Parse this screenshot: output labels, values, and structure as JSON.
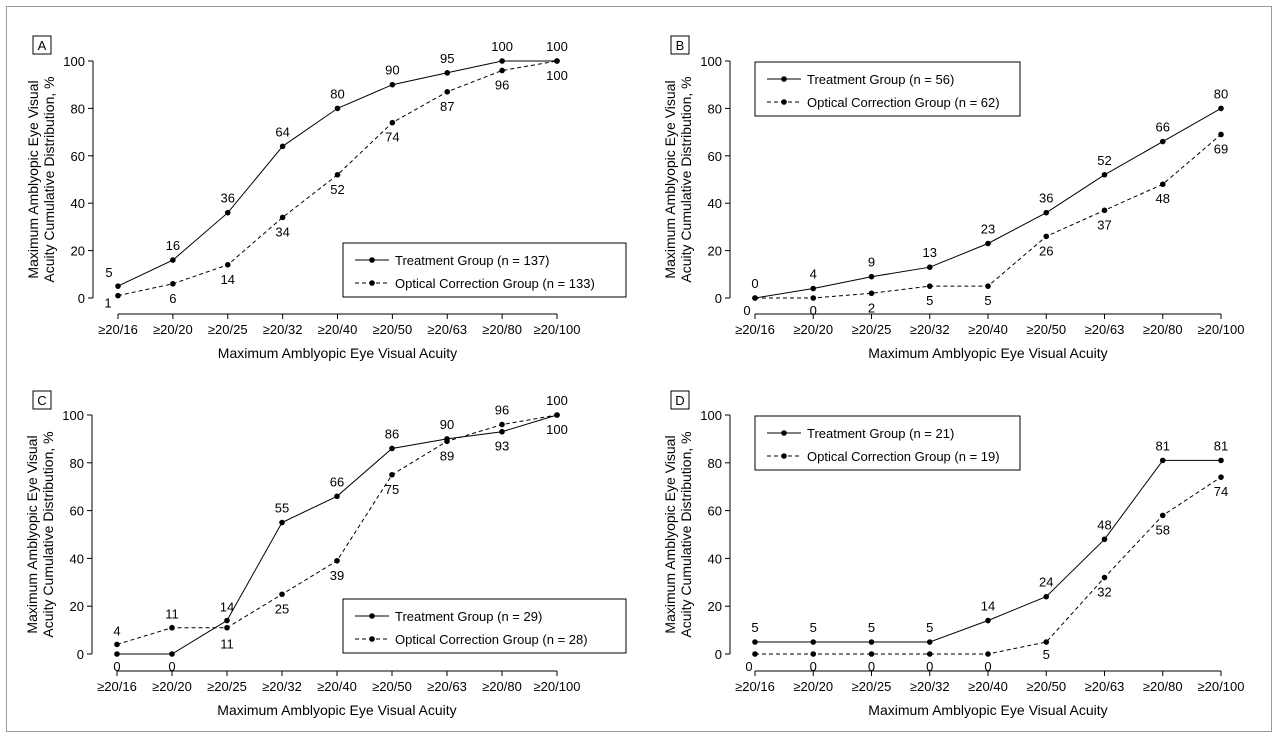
{
  "chart_data": [
    {
      "panel": "A",
      "type": "line",
      "categories": [
        "≥20/16",
        "≥20/20",
        "≥20/25",
        "≥20/32",
        "≥20/40",
        "≥20/50",
        "≥20/63",
        "≥20/80",
        "≥20/100"
      ],
      "xlabel": "Maximum Amblyopic Eye Visual Acuity",
      "ylabel": [
        "Maximum Amblyopic Eye Visual",
        "Acuity Cumulative Distribution, %"
      ],
      "ylim": [
        0,
        100
      ],
      "yticks": [
        0,
        20,
        40,
        60,
        80,
        100
      ],
      "grid": false,
      "legend_position": "bottom-right",
      "series": [
        {
          "name": "Treatment Group (n = 137)",
          "style": "solid",
          "values": [
            5,
            16,
            36,
            64,
            80,
            90,
            95,
            100,
            100
          ]
        },
        {
          "name": "Optical Correction Group (n = 133)",
          "style": "dashed",
          "values": [
            1,
            6,
            14,
            34,
            52,
            74,
            87,
            96,
            100
          ]
        }
      ]
    },
    {
      "panel": "B",
      "type": "line",
      "categories": [
        "≥20/16",
        "≥20/20",
        "≥20/25",
        "≥20/32",
        "≥20/40",
        "≥20/50",
        "≥20/63",
        "≥20/80",
        "≥20/100"
      ],
      "xlabel": "Maximum Amblyopic Eye Visual Acuity",
      "ylabel": [
        "Maximum Amblyopic Eye Visual",
        "Acuity Cumulative Distribution, %"
      ],
      "ylim": [
        0,
        100
      ],
      "yticks": [
        0,
        20,
        40,
        60,
        80,
        100
      ],
      "grid": false,
      "legend_position": "top-left",
      "series": [
        {
          "name": "Treatment Group (n = 56)",
          "style": "solid",
          "values": [
            0,
            4,
            9,
            13,
            23,
            36,
            52,
            66,
            80
          ]
        },
        {
          "name": "Optical Correction Group (n = 62)",
          "style": "dashed",
          "values": [
            0,
            0,
            2,
            5,
            5,
            26,
            37,
            48,
            69
          ]
        }
      ]
    },
    {
      "panel": "C",
      "type": "line",
      "categories": [
        "≥20/16",
        "≥20/20",
        "≥20/25",
        "≥20/32",
        "≥20/40",
        "≥20/50",
        "≥20/63",
        "≥20/80",
        "≥20/100"
      ],
      "xlabel": "Maximum Amblyopic Eye Visual Acuity",
      "ylabel": [
        "Maximum Amblyopic Eye Visual",
        "Acuity Cumulative Distribution, %"
      ],
      "ylim": [
        0,
        100
      ],
      "yticks": [
        0,
        20,
        40,
        60,
        80,
        100
      ],
      "grid": false,
      "legend_position": "bottom-right",
      "series": [
        {
          "name": "Treatment Group (n = 29)",
          "style": "solid",
          "values": [
            0,
            0,
            14,
            55,
            66,
            86,
            90,
            93,
            100
          ]
        },
        {
          "name": "Optical Correction Group (n = 28)",
          "style": "dashed",
          "values": [
            4,
            11,
            11,
            25,
            39,
            75,
            89,
            96,
            100
          ]
        }
      ]
    },
    {
      "panel": "D",
      "type": "line",
      "categories": [
        "≥20/16",
        "≥20/20",
        "≥20/25",
        "≥20/32",
        "≥20/40",
        "≥20/50",
        "≥20/63",
        "≥20/80",
        "≥20/100"
      ],
      "xlabel": "Maximum Amblyopic Eye Visual Acuity",
      "ylabel": [
        "Maximum Amblyopic Eye Visual",
        "Acuity Cumulative Distribution, %"
      ],
      "ylim": [
        0,
        100
      ],
      "yticks": [
        0,
        20,
        40,
        60,
        80,
        100
      ],
      "grid": false,
      "legend_position": "top-left",
      "series": [
        {
          "name": "Treatment Group (n = 21)",
          "style": "solid",
          "values": [
            5,
            5,
            5,
            5,
            14,
            24,
            48,
            81,
            81
          ]
        },
        {
          "name": "Optical Correction Group (n = 19)",
          "style": "dashed",
          "values": [
            0,
            0,
            0,
            0,
            0,
            5,
            32,
            58,
            74
          ]
        }
      ]
    }
  ]
}
